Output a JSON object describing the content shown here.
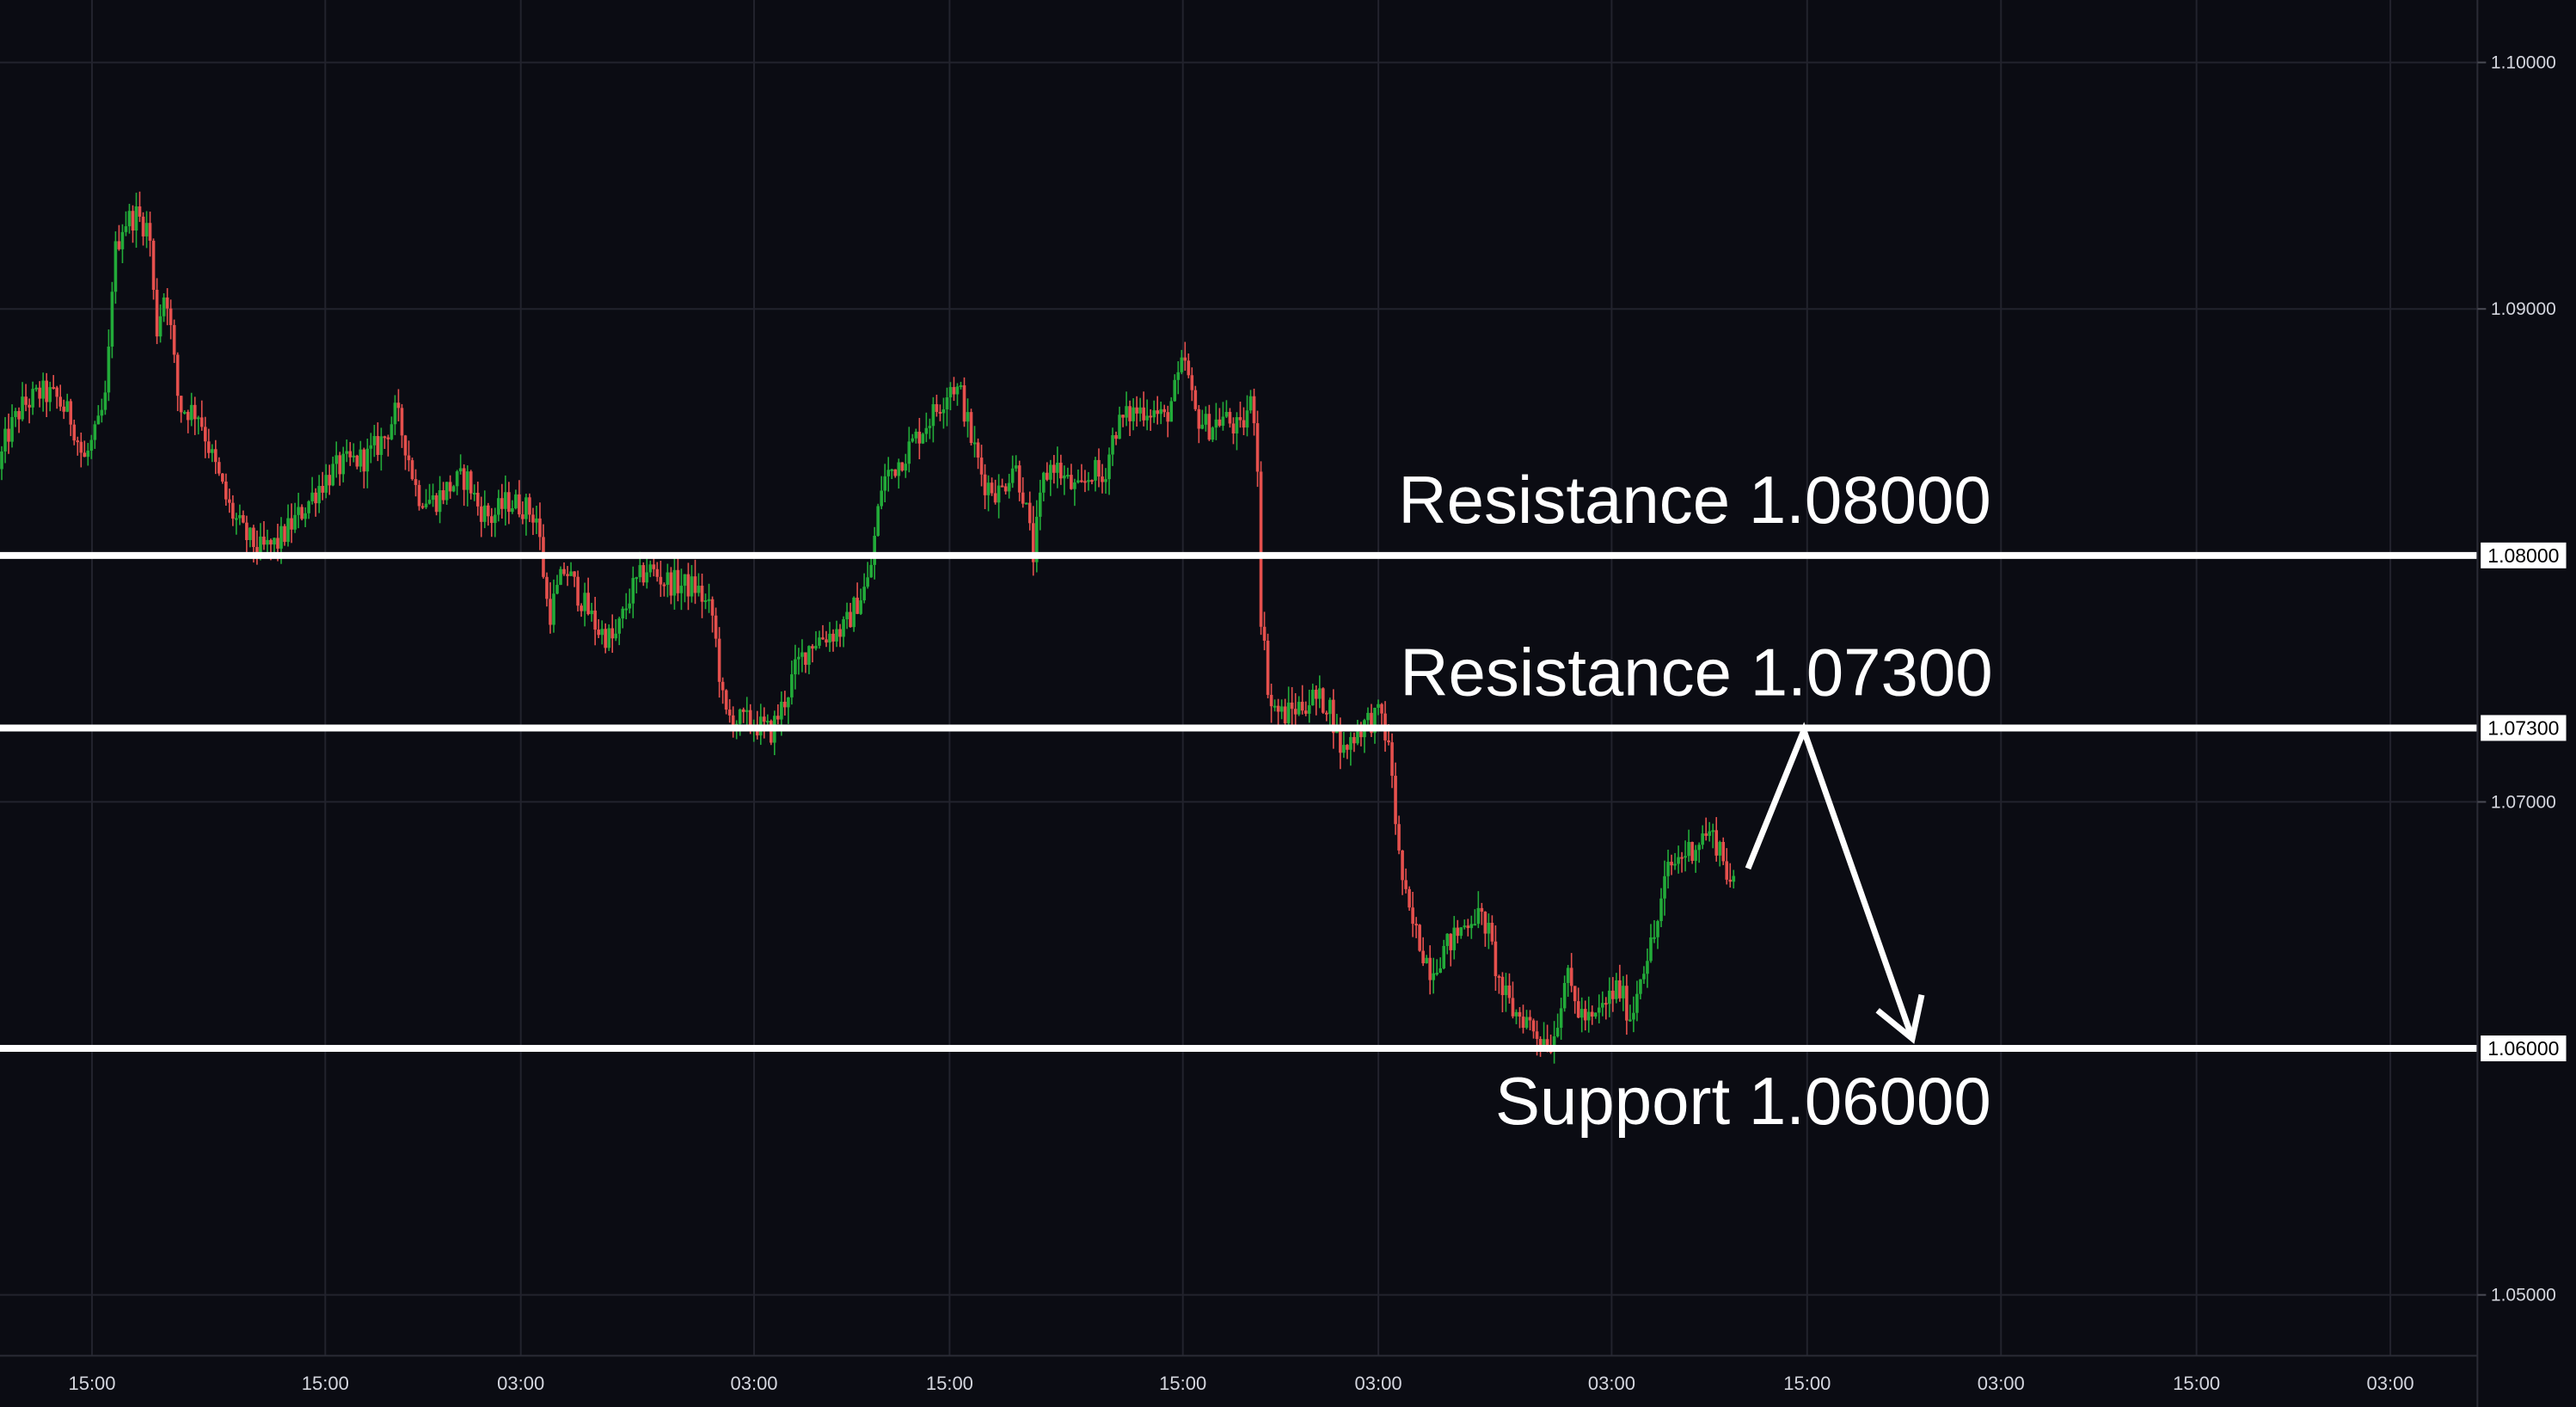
{
  "chart_data": {
    "type": "candlestick",
    "theme": "dark",
    "grid": true,
    "ylim": [
      1.0445,
      1.1025
    ],
    "y_ticks": [
      "1.10000",
      "1.09000",
      "1.07000",
      "1.05000"
    ],
    "x_tick_labels": [
      "15:00",
      "15:00",
      "03:00",
      "03:00",
      "15:00",
      "15:00",
      "03:00",
      "03:00",
      "15:00",
      "03:00",
      "15:00",
      "03:00"
    ],
    "price_path": [
      [
        0,
        1.0835
      ],
      [
        5,
        1.0848
      ],
      [
        14,
        1.086
      ],
      [
        26,
        1.0866
      ],
      [
        35,
        1.0864
      ],
      [
        45,
        1.0855
      ],
      [
        52,
        1.0838
      ],
      [
        60,
        1.085
      ],
      [
        66,
        1.0865
      ],
      [
        70,
        1.092
      ],
      [
        76,
        1.0935
      ],
      [
        84,
        1.0938
      ],
      [
        92,
        1.0932
      ],
      [
        96,
        1.089
      ],
      [
        102,
        1.091
      ],
      [
        110,
        1.086
      ],
      [
        122,
        1.0858
      ],
      [
        130,
        1.084
      ],
      [
        140,
        1.082
      ],
      [
        150,
        1.0808
      ],
      [
        160,
        1.0802
      ],
      [
        170,
        1.0805
      ],
      [
        178,
        1.0812
      ],
      [
        185,
        1.0818
      ],
      [
        195,
        1.0828
      ],
      [
        205,
        1.0835
      ],
      [
        215,
        1.0838
      ],
      [
        225,
        1.084
      ],
      [
        235,
        1.0848
      ],
      [
        242,
        1.0858
      ],
      [
        248,
        1.0845
      ],
      [
        255,
        1.0825
      ],
      [
        265,
        1.0822
      ],
      [
        275,
        1.0828
      ],
      [
        285,
        1.0832
      ],
      [
        292,
        1.082
      ],
      [
        300,
        1.0815
      ],
      [
        310,
        1.0822
      ],
      [
        320,
        1.082
      ],
      [
        328,
        1.0815
      ],
      [
        335,
        1.0775
      ],
      [
        345,
        1.0795
      ],
      [
        355,
        1.0782
      ],
      [
        365,
        1.077
      ],
      [
        375,
        1.0765
      ],
      [
        385,
        1.0785
      ],
      [
        395,
        1.0795
      ],
      [
        405,
        1.079
      ],
      [
        415,
        1.0788
      ],
      [
        425,
        1.0787
      ],
      [
        435,
        1.0775
      ],
      [
        442,
        1.0735
      ],
      [
        450,
        1.0733
      ],
      [
        460,
        1.0732
      ],
      [
        470,
        1.0728
      ],
      [
        478,
        1.074
      ],
      [
        486,
        1.0755
      ],
      [
        495,
        1.0765
      ],
      [
        505,
        1.0768
      ],
      [
        515,
        1.077
      ],
      [
        522,
        1.078
      ],
      [
        530,
        1.079
      ],
      [
        538,
        1.083
      ],
      [
        548,
        1.0838
      ],
      [
        556,
        1.0845
      ],
      [
        566,
        1.0855
      ],
      [
        572,
        1.086
      ],
      [
        580,
        1.087
      ],
      [
        586,
        1.0865
      ],
      [
        592,
        1.0848
      ],
      [
        600,
        1.083
      ],
      [
        610,
        1.0825
      ],
      [
        618,
        1.0838
      ],
      [
        624,
        1.0825
      ],
      [
        630,
        1.08
      ],
      [
        636,
        1.083
      ],
      [
        642,
        1.0838
      ],
      [
        650,
        1.083
      ],
      [
        658,
        1.0825
      ],
      [
        666,
        1.0835
      ],
      [
        672,
        1.083
      ],
      [
        680,
        1.0852
      ],
      [
        690,
        1.0858
      ],
      [
        700,
        1.086
      ],
      [
        710,
        1.0855
      ],
      [
        718,
        1.087
      ],
      [
        722,
        1.088
      ],
      [
        728,
        1.0858
      ],
      [
        736,
        1.0852
      ],
      [
        746,
        1.0856
      ],
      [
        756,
        1.085
      ],
      [
        762,
        1.0862
      ],
      [
        766,
        1.0855
      ],
      [
        768,
        1.078
      ],
      [
        774,
        1.074
      ],
      [
        782,
        1.0735
      ],
      [
        790,
        1.0738
      ],
      [
        800,
        1.0742
      ],
      [
        810,
        1.074
      ],
      [
        818,
        1.072
      ],
      [
        826,
        1.0728
      ],
      [
        834,
        1.0733
      ],
      [
        842,
        1.0735
      ],
      [
        848,
        1.0715
      ],
      [
        852,
        1.068
      ],
      [
        858,
        1.0655
      ],
      [
        864,
        1.0645
      ],
      [
        872,
        1.0632
      ],
      [
        880,
        1.064
      ],
      [
        890,
        1.0648
      ],
      [
        898,
        1.0655
      ],
      [
        906,
        1.065
      ],
      [
        914,
        1.0625
      ],
      [
        922,
        1.0615
      ],
      [
        930,
        1.0612
      ],
      [
        938,
        1.0605
      ],
      [
        946,
        1.0602
      ],
      [
        954,
        1.063
      ],
      [
        962,
        1.0615
      ],
      [
        970,
        1.061
      ],
      [
        978,
        1.0618
      ],
      [
        986,
        1.0625
      ],
      [
        994,
        1.0612
      ],
      [
        1000,
        1.0632
      ],
      [
        1008,
        1.0645
      ],
      [
        1016,
        1.0672
      ],
      [
        1024,
        1.0678
      ],
      [
        1032,
        1.0682
      ],
      [
        1040,
        1.0688
      ],
      [
        1048,
        1.0682
      ],
      [
        1055,
        1.0665
      ]
    ],
    "levels": [
      {
        "label": "Resistance 1.08000",
        "price_label": "1.08000",
        "value": 1.08
      },
      {
        "label": "Resistance 1.07300",
        "price_label": "1.07300",
        "value": 1.073
      },
      {
        "label": "Support 1.06000",
        "price_label": "1.06000",
        "value": 1.06
      }
    ],
    "projection": [
      [
        1064,
        1.0673
      ],
      [
        1098,
        1.0729
      ],
      [
        1164,
        1.0604
      ]
    ],
    "colors": {
      "background": "#0b0c13",
      "grid": "#22232d",
      "up": "#22ab39",
      "down": "#e5504d",
      "level_line": "#ffffff",
      "axis_text": "#d4d6de"
    }
  }
}
